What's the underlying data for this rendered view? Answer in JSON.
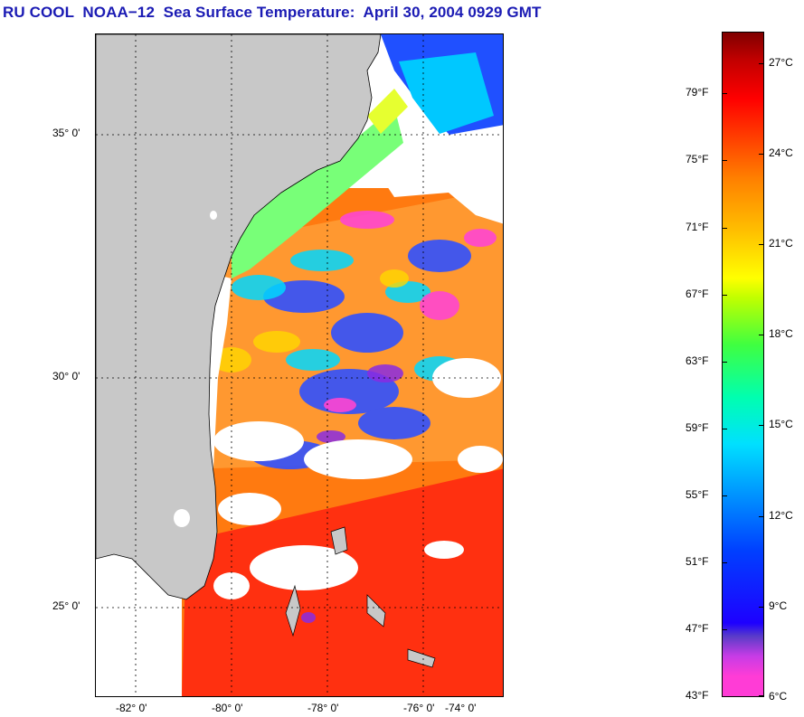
{
  "title": "RU COOL  NOAA−12  Sea Surface Temperature:  April 30, 2004 0929 GMT",
  "latitude_labels": [
    "35° 0'",
    "30° 0'",
    "25° 0'"
  ],
  "longitude_labels": [
    "-82° 0'",
    "-80° 0'",
    "-78° 0'",
    "-76° 0'",
    "-74° 0'"
  ],
  "colorbar": {
    "fahrenheit": [
      "79°F",
      "75°F",
      "71°F",
      "67°F",
      "63°F",
      "59°F",
      "55°F",
      "51°F",
      "47°F",
      "43°F"
    ],
    "celsius": [
      "27°C",
      "24°C",
      "21°C",
      "18°C",
      "15°C",
      "12°C",
      "9°C",
      "6°C"
    ]
  },
  "colors": {
    "title": "#1b1bb4",
    "land": "#c8c8c8",
    "cloud": "#ffffff",
    "warm": "#ff5a00",
    "hot": "#ff1e00",
    "cool": "#00c8ff",
    "cold": "#2828ff",
    "purple": "#8a2be2",
    "magenta": "#ff46d2",
    "green": "#6aff6a",
    "yellow": "#ffd800"
  }
}
